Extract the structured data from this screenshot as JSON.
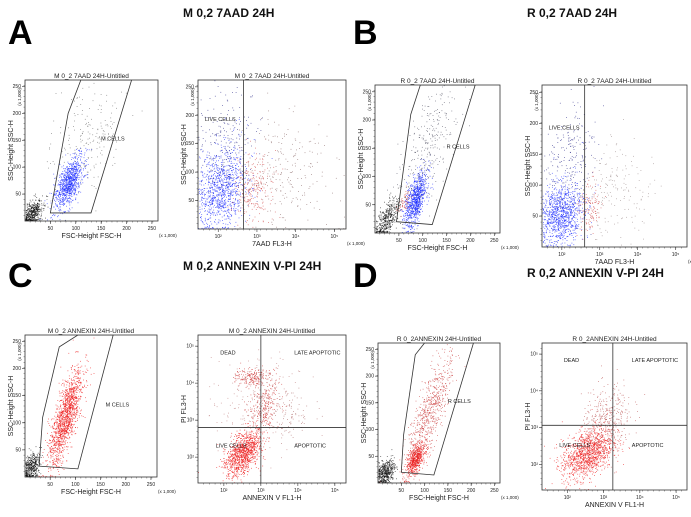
{
  "panels": [
    {
      "letter": "A",
      "title": "M 0,2 7AAD 24H"
    },
    {
      "letter": "B",
      "title": "R 0,2 7AAD 24H"
    },
    {
      "letter": "C",
      "title": "M 0,2 ANNEXIN V-PI 24H"
    },
    {
      "letter": "D",
      "title": "R 0,2 ANNEXIN V-PI 24H"
    }
  ],
  "chart_data": [
    {
      "type": "scatter",
      "panel": "A",
      "title": "M 0_2 7AAD 24H-Untitled",
      "xlabel": "FSC-Height FSC-H",
      "ylabel": "SSC-Height SSC-H",
      "unit": "(x 1,000)",
      "xscale": "linear",
      "yscale": "linear",
      "xlim": [
        0,
        262
      ],
      "ylim": [
        0,
        262
      ],
      "xticks": [
        50,
        100,
        150,
        200,
        250
      ],
      "yticks": [
        50,
        100,
        150,
        200,
        250
      ],
      "gate": {
        "type": "polygon",
        "label": "M CELLS",
        "label_at": [
          150,
          150
        ],
        "points": [
          [
            50,
            15
          ],
          [
            85,
            200
          ],
          [
            110,
            262
          ],
          [
            210,
            262
          ],
          [
            130,
            15
          ]
        ]
      },
      "populations": [
        {
          "color": "#111111",
          "center": [
            15,
            15
          ],
          "spread": [
            9,
            12
          ],
          "corr": 0.4,
          "count": 450
        },
        {
          "color": "#1a2bff",
          "center": [
            85,
            70
          ],
          "spread": [
            14,
            25
          ],
          "corr": 0.6,
          "count": 900
        },
        {
          "color": "#666666",
          "center": [
            120,
            150
          ],
          "spread": [
            35,
            55
          ],
          "corr": 0.3,
          "count": 200
        }
      ]
    },
    {
      "type": "scatter",
      "panel": "A",
      "title": "M 0_2 7AAD 24H-Untitled",
      "xlabel": "7AAD FL3-H",
      "ylabel": "SSC-Height SSC-H",
      "unit": "(x 1,000)",
      "xscale": "log",
      "yscale": "linear",
      "xlim": [
        30,
        200000
      ],
      "ylim": [
        0,
        262
      ],
      "xticks": [
        100,
        1000,
        10000,
        100000
      ],
      "xticklabels": [
        "10²",
        "10³",
        "10⁴",
        "10⁵"
      ],
      "yticks": [
        50,
        100,
        150,
        200,
        250
      ],
      "gate": {
        "type": "vline",
        "label": "LIVE CELLS",
        "label_at": [
          45,
          190
        ],
        "x": 450
      },
      "populations": [
        {
          "color": "#1a2bff",
          "center": [
            110,
            70
          ],
          "spread": [
            0.35,
            35
          ],
          "corr": 0.2,
          "count": 1000
        },
        {
          "color": "#2a2a88",
          "center": [
            150,
            150
          ],
          "spread": [
            0.4,
            50
          ],
          "corr": 0.1,
          "count": 250
        },
        {
          "color": "#d04545",
          "center": [
            800,
            75
          ],
          "spread": [
            0.25,
            30
          ],
          "corr": 0.1,
          "count": 250
        },
        {
          "color": "#886666",
          "center": [
            5000,
            100
          ],
          "spread": [
            0.6,
            50
          ],
          "corr": 0.0,
          "count": 220
        }
      ]
    },
    {
      "type": "scatter",
      "panel": "B",
      "title": "R 0_2 7AAD 24H-Untitled",
      "xlabel": "FSC-Height FSC-H",
      "ylabel": "SSC-Height SSC-H",
      "unit": "(x 1,000)",
      "xscale": "linear",
      "yscale": "linear",
      "xlim": [
        0,
        262
      ],
      "ylim": [
        0,
        262
      ],
      "xticks": [
        50,
        100,
        150,
        200,
        250
      ],
      "yticks": [
        50,
        100,
        150,
        200,
        250
      ],
      "gate": {
        "type": "polygon",
        "label": "R CELLS",
        "label_at": [
          150,
          150
        ],
        "points": [
          [
            45,
            20
          ],
          [
            75,
            210
          ],
          [
            95,
            262
          ],
          [
            210,
            262
          ],
          [
            120,
            15
          ]
        ]
      },
      "populations": [
        {
          "color": "#111111",
          "center": [
            25,
            25
          ],
          "spread": [
            12,
            18
          ],
          "corr": 0.6,
          "count": 400
        },
        {
          "color": "#1a2bff",
          "center": [
            85,
            60
          ],
          "spread": [
            12,
            25
          ],
          "corr": 0.6,
          "count": 850
        },
        {
          "color": "#d04545",
          "center": [
            60,
            55
          ],
          "spread": [
            6,
            12
          ],
          "corr": 0.5,
          "count": 60
        },
        {
          "color": "#555566",
          "center": [
            110,
            150
          ],
          "spread": [
            30,
            55
          ],
          "corr": 0.6,
          "count": 300
        }
      ]
    },
    {
      "type": "scatter",
      "panel": "B",
      "title": "R 0_2 7AAD 24H-Untitled",
      "xlabel": "7AAD FL3-H",
      "ylabel": "SSC-Height SSC-H",
      "unit": "(x 1,000)",
      "xscale": "log",
      "yscale": "linear",
      "xlim": [
        30,
        200000
      ],
      "ylim": [
        0,
        262
      ],
      "xticks": [
        100,
        1000,
        10000,
        100000
      ],
      "xticklabels": [
        "10²",
        "10³",
        "10⁴",
        "10⁵"
      ],
      "yticks": [
        50,
        100,
        150,
        200,
        250
      ],
      "gate": {
        "type": "vline",
        "label": "LIVE CELLS",
        "label_at": [
          45,
          190
        ],
        "x": 400
      },
      "populations": [
        {
          "color": "#1a2bff",
          "center": [
            90,
            55
          ],
          "spread": [
            0.3,
            25
          ],
          "corr": 0.2,
          "count": 1000
        },
        {
          "color": "#2a2a88",
          "center": [
            150,
            140
          ],
          "spread": [
            0.35,
            50
          ],
          "corr": 0.1,
          "count": 250
        },
        {
          "color": "#d04545",
          "center": [
            550,
            65
          ],
          "spread": [
            0.15,
            20
          ],
          "corr": 0.1,
          "count": 130
        },
        {
          "color": "#998888",
          "center": [
            3000,
            90
          ],
          "spread": [
            0.5,
            40
          ],
          "corr": 0.0,
          "count": 160
        }
      ]
    },
    {
      "type": "scatter",
      "panel": "C",
      "title": "M 0_2 ANNEXIN 24H-Untitled",
      "xlabel": "FSC-Height FSC-H",
      "ylabel": "SSC-Height SSC-H",
      "unit": "(x 1,000)",
      "xscale": "linear",
      "yscale": "linear",
      "xlim": [
        0,
        262
      ],
      "ylim": [
        0,
        262
      ],
      "xticks": [
        50,
        100,
        150,
        200,
        250
      ],
      "yticks": [
        50,
        100,
        150,
        200,
        250
      ],
      "gate": {
        "type": "polygon",
        "label": "M CELLS",
        "label_at": [
          160,
          130
        ],
        "points": [
          [
            28,
            20
          ],
          [
            35,
            110
          ],
          [
            68,
            240
          ],
          [
            105,
            262
          ],
          [
            175,
            262
          ],
          [
            105,
            15
          ]
        ]
      },
      "populations": [
        {
          "color": "#111111",
          "center": [
            12,
            18
          ],
          "spread": [
            8,
            14
          ],
          "corr": 0.3,
          "count": 400
        },
        {
          "color": "#ee1a1a",
          "center": [
            80,
            110
          ],
          "spread": [
            17,
            45
          ],
          "corr": 0.75,
          "count": 1400
        }
      ]
    },
    {
      "type": "scatter",
      "panel": "C",
      "title": "M 0_2 ANNEXIN 24H-Untitled",
      "xlabel": "ANNEXIN V FL1-H",
      "ylabel": "PI FL3-H",
      "xscale": "log",
      "yscale": "log",
      "xlim": [
        20,
        200000
      ],
      "ylim": [
        20,
        200000
      ],
      "xticks": [
        100,
        1000,
        10000,
        100000
      ],
      "xticklabels": [
        "10²",
        "10³",
        "10⁴",
        "10⁵"
      ],
      "yticks": [
        100,
        1000,
        10000,
        100000
      ],
      "yticklabels": [
        "10²",
        "10³",
        "10⁴",
        "10⁵"
      ],
      "gate": {
        "type": "quadrant",
        "x": 1000,
        "y": 630,
        "labels": [
          {
            "text": "DEAD",
            "at": [
              80,
              60000
            ]
          },
          {
            "text": "LATE APOPTOTIC",
            "at": [
              8000,
              60000
            ]
          },
          {
            "text": "LIVE CELLS",
            "at": [
              60,
              180
            ]
          },
          {
            "text": "APOPTOTIC",
            "at": [
              8000,
              180
            ]
          }
        ]
      },
      "populations": [
        {
          "color": "#ee1a1a",
          "center": [
            320,
            130
          ],
          "spread": [
            0.25,
            0.3
          ],
          "corr": 0.5,
          "count": 1100
        },
        {
          "color": "#cc3333",
          "center": [
            600,
            15000
          ],
          "spread": [
            0.25,
            0.12
          ],
          "corr": 0.0,
          "count": 200
        },
        {
          "color": "#cc3333",
          "center": [
            1200,
            2500
          ],
          "spread": [
            0.2,
            0.35
          ],
          "corr": 0.2,
          "count": 250
        },
        {
          "color": "#aa6666",
          "center": [
            6000,
            1500
          ],
          "spread": [
            0.3,
            0.3
          ],
          "corr": 0.0,
          "count": 80
        },
        {
          "color": "#bb7777",
          "center": [
            800,
            3000
          ],
          "spread": [
            0.6,
            0.7
          ],
          "corr": 0.0,
          "count": 200
        }
      ]
    },
    {
      "type": "scatter",
      "panel": "D",
      "title": "R 0_2ANNEXIN 24H-Untitled",
      "xlabel": "FSC-Height FSC-H",
      "ylabel": "SSC-Height SSC-H",
      "unit": "(x 1,000)",
      "xscale": "linear",
      "yscale": "linear",
      "xlim": [
        0,
        262
      ],
      "ylim": [
        0,
        262
      ],
      "xticks": [
        50,
        100,
        150,
        200,
        250
      ],
      "yticks": [
        50,
        100,
        150,
        200,
        250
      ],
      "gate": {
        "type": "polygon",
        "label": "R CELLS",
        "label_at": [
          150,
          150
        ],
        "points": [
          [
            50,
            20
          ],
          [
            55,
            90
          ],
          [
            80,
            240
          ],
          [
            100,
            262
          ],
          [
            205,
            262
          ],
          [
            120,
            15
          ]
        ]
      },
      "populations": [
        {
          "color": "#111111",
          "center": [
            15,
            20
          ],
          "spread": [
            10,
            12
          ],
          "corr": 0.4,
          "count": 450
        },
        {
          "color": "#ee1a1a",
          "center": [
            80,
            45
          ],
          "spread": [
            10,
            15
          ],
          "corr": 0.6,
          "count": 600
        },
        {
          "color": "#cc4444",
          "center": [
            110,
            130
          ],
          "spread": [
            25,
            55
          ],
          "corr": 0.8,
          "count": 700
        }
      ]
    },
    {
      "type": "scatter",
      "panel": "D",
      "title": "R 0_2ANNEXIN 24H-Untitled",
      "xlabel": "ANNEXIN V FL1-H",
      "ylabel": "PI FL3-H",
      "xscale": "log",
      "yscale": "log",
      "xlim": [
        20,
        200000
      ],
      "ylim": [
        20,
        200000
      ],
      "xticks": [
        100,
        1000,
        10000,
        100000
      ],
      "xticklabels": [
        "10²",
        "10³",
        "10⁴",
        "10⁵"
      ],
      "yticks": [
        100,
        1000,
        10000,
        100000
      ],
      "yticklabels": [
        "10²",
        "10³",
        "10⁴",
        "10⁵"
      ],
      "gate": {
        "type": "quadrant",
        "x": 1800,
        "y": 1150,
        "labels": [
          {
            "text": "DEAD",
            "at": [
              80,
              60000
            ]
          },
          {
            "text": "LATE APOPTOTIC",
            "at": [
              6000,
              60000
            ]
          },
          {
            "text": "LIVE CELLS",
            "at": [
              60,
              300
            ]
          },
          {
            "text": "APOPTOTIC",
            "at": [
              6000,
              300
            ]
          }
        ]
      },
      "populations": [
        {
          "color": "#ee1a1a",
          "center": [
            350,
            200
          ],
          "spread": [
            0.35,
            0.35
          ],
          "corr": 0.4,
          "count": 1200
        },
        {
          "color": "#bb5555",
          "center": [
            1200,
            1500
          ],
          "spread": [
            0.35,
            0.5
          ],
          "corr": 0.3,
          "count": 400
        }
      ]
    }
  ]
}
